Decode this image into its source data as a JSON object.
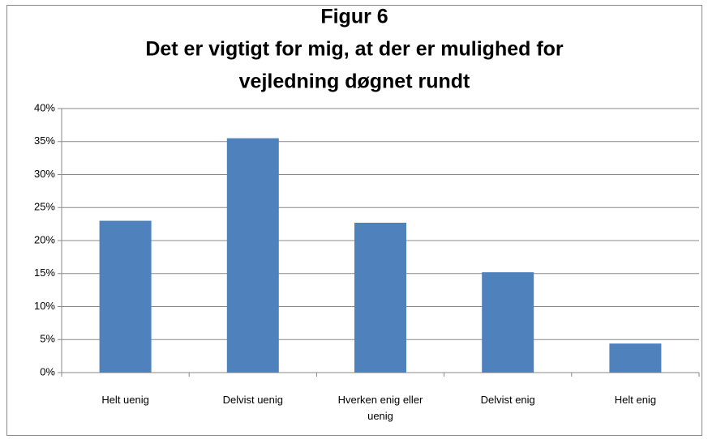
{
  "chart_data": {
    "type": "bar",
    "title": [
      "Figur 6",
      "Det er vigtigt for mig, at der er mulighed for",
      "vejledning døgnet rundt"
    ],
    "categories": [
      "Helt uenig",
      "Delvist uenig",
      "Hverken enig eller uenig",
      "Delvist enig",
      "Helt enig"
    ],
    "values": [
      23,
      35.5,
      22.7,
      15.2,
      4.4
    ],
    "color": "#4f81bd",
    "ylim": [
      0,
      40
    ],
    "yticks": [
      {
        "value": 0,
        "label": "0%"
      },
      {
        "value": 5,
        "label": "5%"
      },
      {
        "value": 10,
        "label": "10%"
      },
      {
        "value": 15,
        "label": "15%"
      },
      {
        "value": 20,
        "label": "20%"
      },
      {
        "value": 25,
        "label": "25%"
      },
      {
        "value": 30,
        "label": "30%"
      },
      {
        "value": 35,
        "label": "35%"
      },
      {
        "value": 40,
        "label": "40%"
      }
    ],
    "grid": true
  }
}
